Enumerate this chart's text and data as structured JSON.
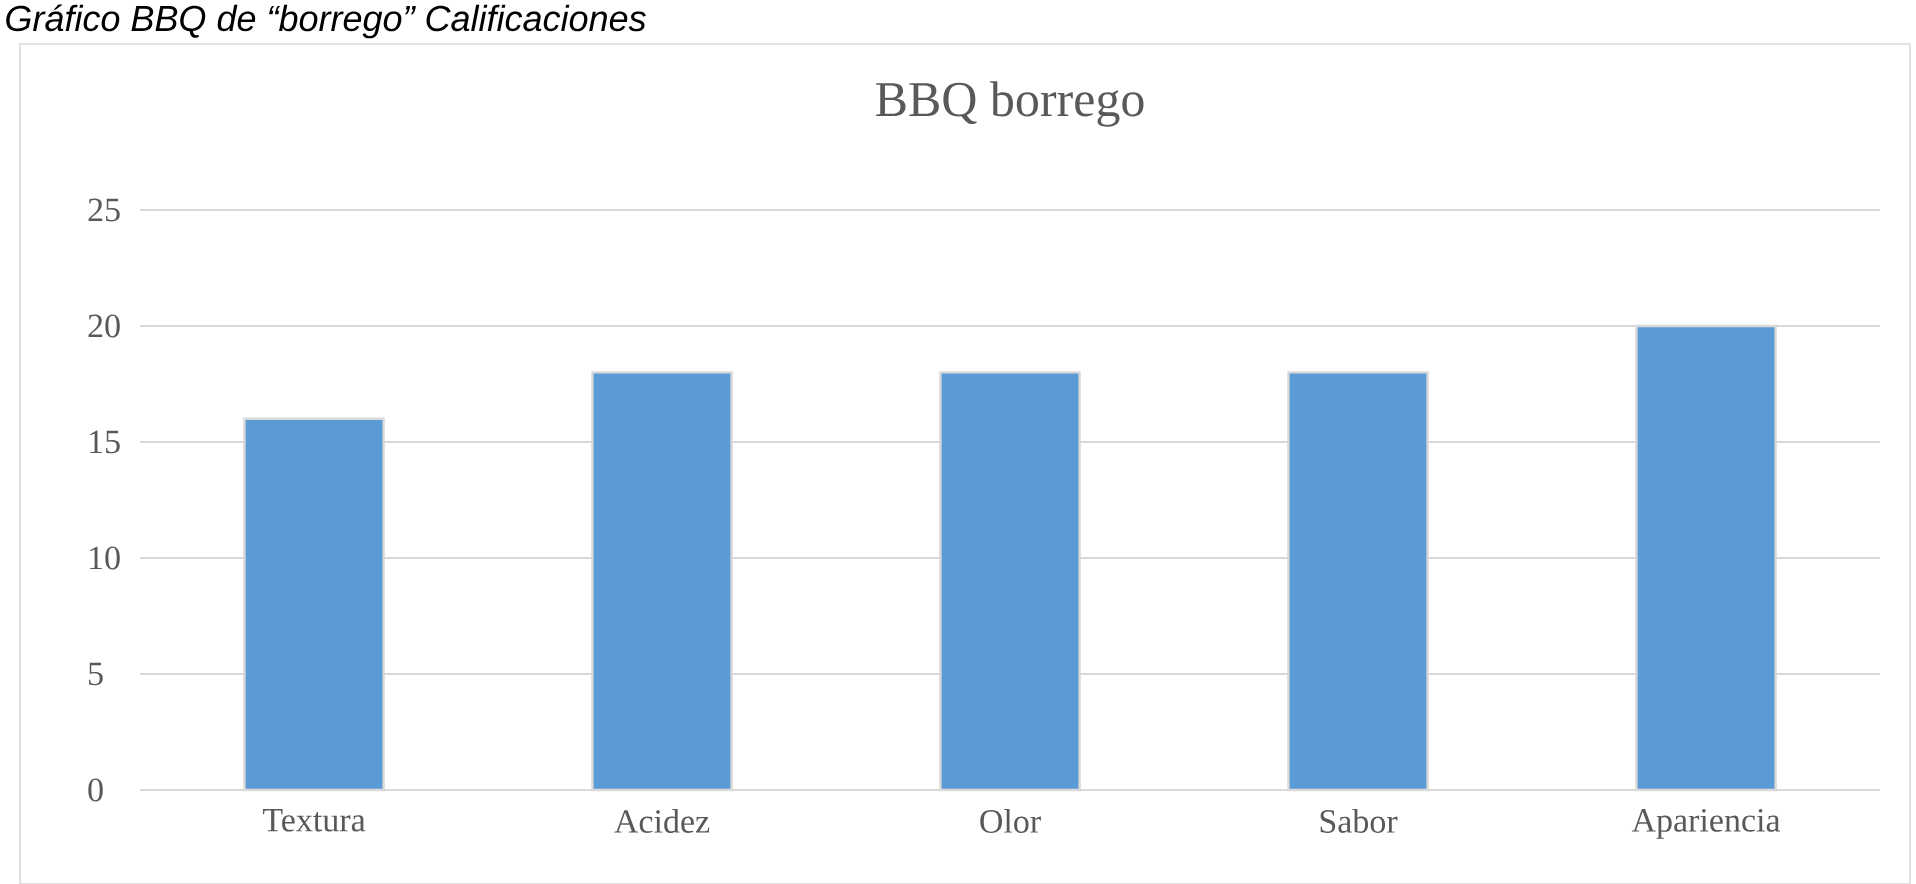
{
  "chart_data": {
    "type": "bar",
    "title": "BBQ borrego",
    "annotations": [
      "Gráfico BBQ de “borrego” Calificaciones"
    ],
    "categories": [
      "Textura",
      "Acidez",
      "Olor",
      "Sabor",
      "Apariencia"
    ],
    "values": [
      16,
      18,
      18,
      18,
      20
    ],
    "color": "#5b9bd5",
    "ylim": [
      0,
      25
    ],
    "yticks": [
      0,
      5,
      10,
      15,
      20,
      25
    ],
    "grid": "y"
  }
}
